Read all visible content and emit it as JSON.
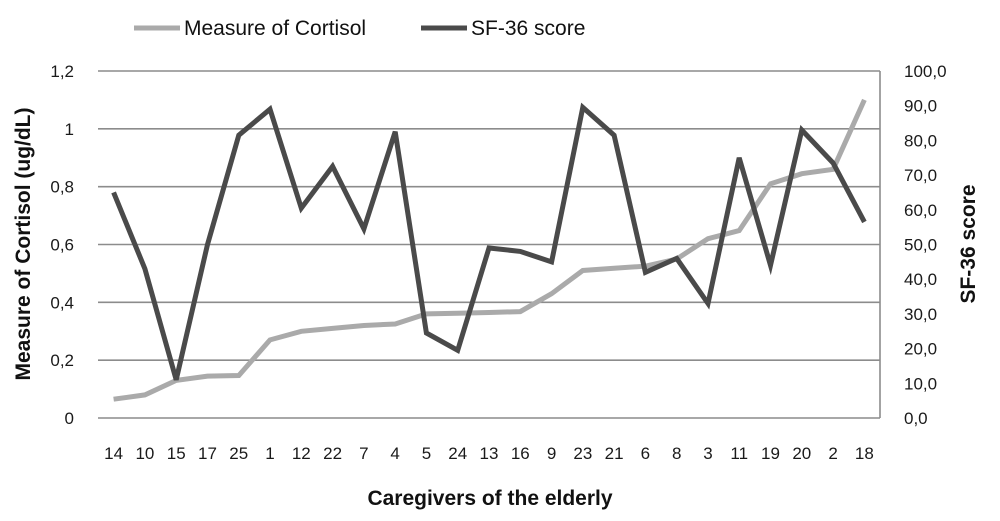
{
  "chart_data": {
    "type": "line",
    "xlabel": "Caregivers of the elderly",
    "categories": [
      "14",
      "10",
      "15",
      "17",
      "25",
      "1",
      "12",
      "22",
      "7",
      "4",
      "5",
      "24",
      "13",
      "16",
      "9",
      "23",
      "21",
      "6",
      "8",
      "3",
      "11",
      "19",
      "20",
      "2",
      "18"
    ],
    "y_left": {
      "label": "Measure of Cortisol (ug/dL)",
      "range": [
        0,
        1.2
      ],
      "ticks": [
        "0",
        "0,2",
        "0,4",
        "0,6",
        "0,8",
        "1",
        "1,2"
      ]
    },
    "y_right": {
      "label": "SF-36 score",
      "range": [
        0,
        100
      ],
      "ticks": [
        "0,0",
        "10,0",
        "20,0",
        "30,0",
        "40,0",
        "50,0",
        "60,0",
        "70,0",
        "80,0",
        "90,0",
        "100,0"
      ]
    },
    "series": [
      {
        "name": "Measure of Cortisol",
        "axis": "left",
        "color": "#aaaaaa",
        "values": [
          0.065,
          0.08,
          0.13,
          0.145,
          0.147,
          0.27,
          0.3,
          0.31,
          0.32,
          0.325,
          0.36,
          0.362,
          0.365,
          0.368,
          0.43,
          0.51,
          0.518,
          0.525,
          0.55,
          0.62,
          0.648,
          0.81,
          0.845,
          0.86,
          1.1
        ]
      },
      {
        "name": "SF-36 score",
        "axis": "right",
        "color": "#4a4a4a",
        "values": [
          65,
          43,
          11,
          50,
          81.5,
          89,
          60.5,
          72.5,
          54.5,
          82.5,
          24.5,
          19.5,
          49,
          48,
          45,
          89.5,
          81.5,
          42,
          46,
          33,
          75,
          44,
          83,
          73.5,
          56.5
        ]
      }
    ],
    "grid": true,
    "legend": "top"
  }
}
